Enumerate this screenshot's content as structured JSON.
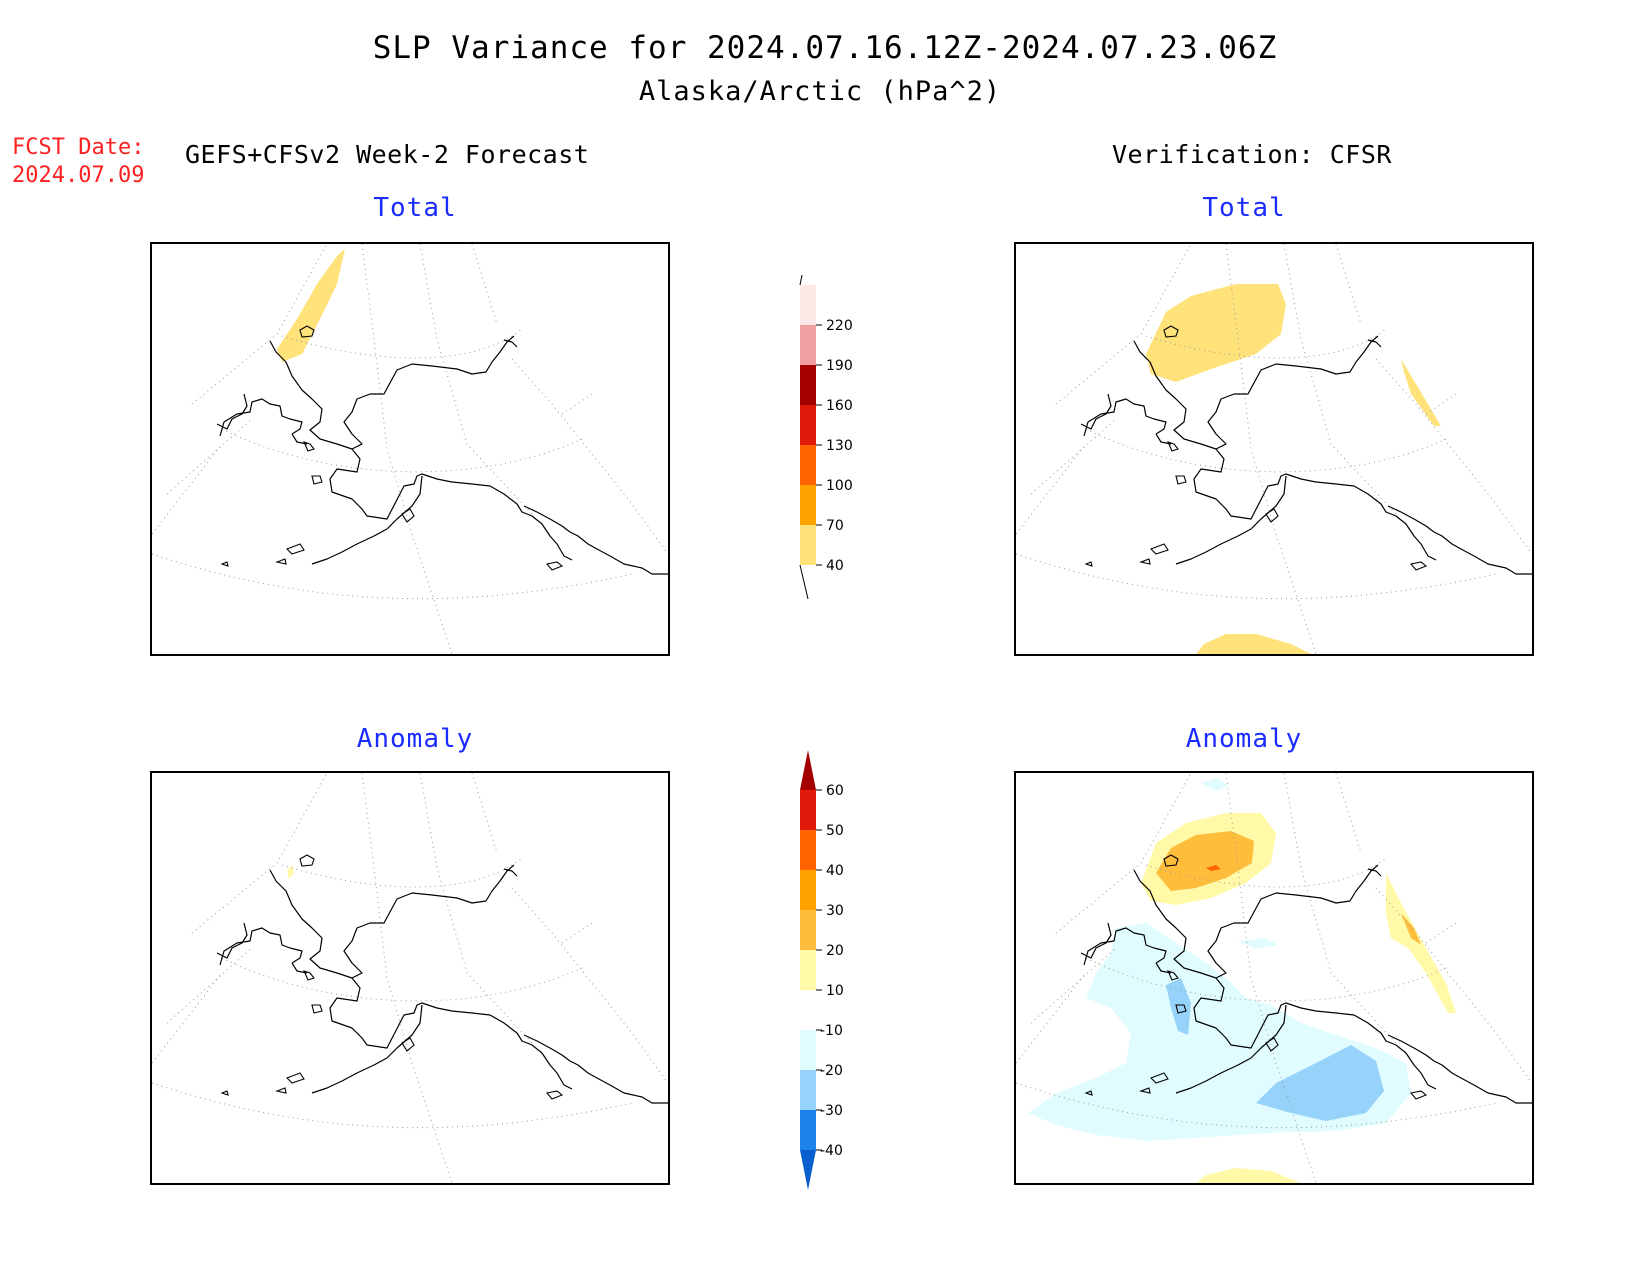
{
  "header": {
    "title": "SLP Variance for 2024.07.16.12Z-2024.07.23.06Z",
    "subtitle": "Alaska/Arctic (hPa^2)",
    "fcst_label": "FCST Date:",
    "fcst_date": "2024.07.09",
    "left_heading": "GEFS+CFSv2 Week-2 Forecast",
    "right_heading": "Verification: CFSR"
  },
  "panels": {
    "fcst_total": {
      "title": "Total"
    },
    "verif_total": {
      "title": "Total"
    },
    "fcst_anom": {
      "title": "Anomaly"
    },
    "verif_anom": {
      "title": "Anomaly"
    }
  },
  "colorbars": {
    "total": {
      "levels": [
        "40",
        "70",
        "100",
        "130",
        "160",
        "190",
        "220"
      ],
      "colors": [
        "#ffe27a",
        "#ffa200",
        "#ff6400",
        "#e01a0a",
        "#a50000",
        "#f0a0a0",
        "#fde8e8"
      ]
    },
    "anomaly": {
      "levels": [
        "-40",
        "-30",
        "-20",
        "-10",
        "10",
        "20",
        "30",
        "40",
        "50",
        "60"
      ],
      "colors": [
        "#0a60d0",
        "#1e82eb",
        "#96d2fa",
        "#e0fcff",
        "#ffffff",
        "#fff9a8",
        "#ffbd3c",
        "#ffa200",
        "#ff6400",
        "#e01a0a",
        "#a50000"
      ]
    }
  }
}
